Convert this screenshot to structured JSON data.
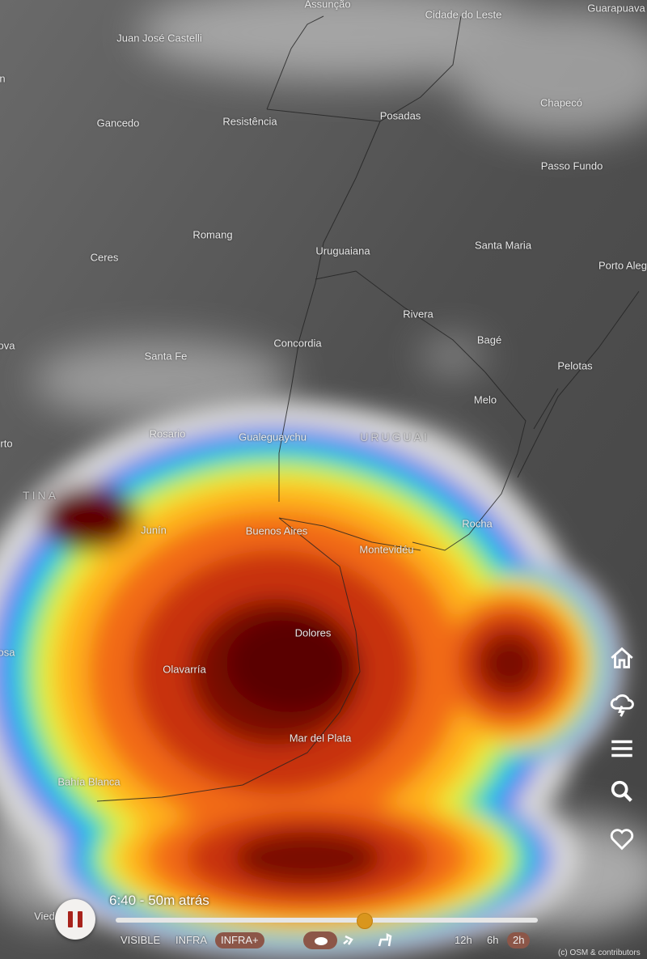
{
  "map": {
    "places": [
      "Assunção",
      "Cidade do Leste",
      "Guarapuava",
      "Juan José Castelli",
      "n",
      "Gancedo",
      "Resistência",
      "Posadas",
      "Chapecó",
      "Passo Fundo",
      "Romang",
      "Ceres",
      "Uruguaiana",
      "Santa Maria",
      "Porto Aleg",
      "Rivera",
      "Concordia",
      "ova",
      "Santa Fe",
      "Bagé",
      "Pelotas",
      "Melo",
      "Rosario",
      "Gualeguaychu",
      "URUGUAI",
      "rto",
      "TINA",
      "Rocha",
      "Junín",
      "Buenos Aires",
      "Montevidéu",
      "Dolores",
      "osa",
      "Olavarría",
      "Mar del Plata",
      "Bahía Blanca",
      "Vied"
    ]
  },
  "player": {
    "time": "6:40 - 50m atrás"
  },
  "layers": [
    "VISIBLE",
    "INFRA",
    "INFRA+"
  ],
  "durations": [
    "12h",
    "6h",
    "2h"
  ],
  "attribution": "(c) OSM & contributors"
}
